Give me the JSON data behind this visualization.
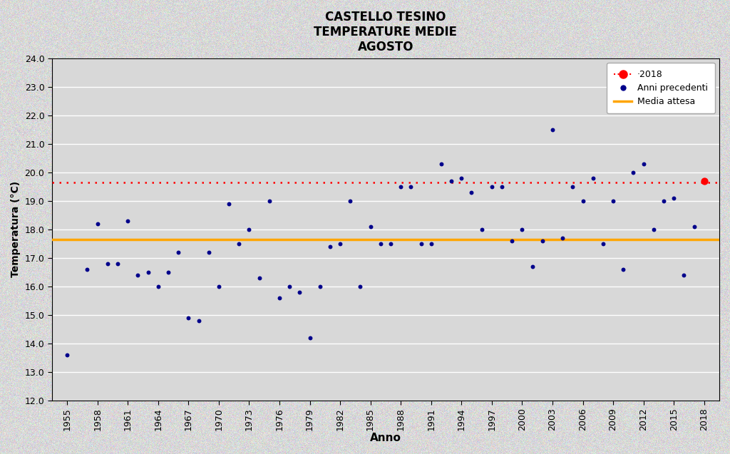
{
  "title_line1": "CASTELLO TESINO",
  "title_line2": "TEMPERATURE MEDIE",
  "title_line3": "AGOSTO",
  "xlabel": "Anno",
  "ylabel": "Temperatura (°C)",
  "ylim": [
    12.0,
    24.0
  ],
  "yticks": [
    12.0,
    13.0,
    14.0,
    15.0,
    16.0,
    17.0,
    18.0,
    19.0,
    20.0,
    21.0,
    22.0,
    23.0,
    24.0
  ],
  "xlim": [
    1953.5,
    2019.5
  ],
  "xticks": [
    1955,
    1958,
    1961,
    1964,
    1967,
    1970,
    1973,
    1976,
    1979,
    1982,
    1985,
    1988,
    1991,
    1994,
    1997,
    2000,
    2003,
    2006,
    2009,
    2012,
    2015,
    2018
  ],
  "media_attesa": 17.65,
  "year_2018": 2018,
  "value_2018": 19.7,
  "dashed_line_value": 19.65,
  "background_color": "#d8d8d8",
  "dot_color": "#00008B",
  "dot_2018_color": "#FF0000",
  "media_line_color": "#FFA500",
  "dashed_line_color": "#FF0000",
  "previous_years": [
    [
      1955,
      13.6
    ],
    [
      1957,
      16.6
    ],
    [
      1958,
      18.2
    ],
    [
      1959,
      16.8
    ],
    [
      1960,
      16.8
    ],
    [
      1961,
      18.3
    ],
    [
      1962,
      16.4
    ],
    [
      1963,
      16.5
    ],
    [
      1964,
      16.0
    ],
    [
      1965,
      16.5
    ],
    [
      1966,
      17.2
    ],
    [
      1967,
      14.9
    ],
    [
      1968,
      14.8
    ],
    [
      1969,
      17.2
    ],
    [
      1970,
      16.0
    ],
    [
      1971,
      18.9
    ],
    [
      1972,
      17.5
    ],
    [
      1973,
      18.0
    ],
    [
      1974,
      16.3
    ],
    [
      1975,
      19.0
    ],
    [
      1976,
      15.6
    ],
    [
      1977,
      16.0
    ],
    [
      1978,
      15.8
    ],
    [
      1979,
      14.2
    ],
    [
      1980,
      16.0
    ],
    [
      1981,
      17.4
    ],
    [
      1982,
      17.5
    ],
    [
      1983,
      19.0
    ],
    [
      1984,
      16.0
    ],
    [
      1985,
      18.1
    ],
    [
      1986,
      17.5
    ],
    [
      1987,
      17.5
    ],
    [
      1988,
      19.5
    ],
    [
      1989,
      19.5
    ],
    [
      1990,
      17.5
    ],
    [
      1991,
      17.5
    ],
    [
      1992,
      20.3
    ],
    [
      1993,
      19.7
    ],
    [
      1994,
      19.8
    ],
    [
      1995,
      19.3
    ],
    [
      1996,
      18.0
    ],
    [
      1997,
      19.5
    ],
    [
      1998,
      19.5
    ],
    [
      1999,
      17.6
    ],
    [
      2000,
      18.0
    ],
    [
      2001,
      16.7
    ],
    [
      2002,
      17.6
    ],
    [
      2003,
      21.5
    ],
    [
      2004,
      17.7
    ],
    [
      2005,
      19.5
    ],
    [
      2006,
      19.0
    ],
    [
      2007,
      19.8
    ],
    [
      2008,
      17.5
    ],
    [
      2009,
      19.0
    ],
    [
      2010,
      16.6
    ],
    [
      2011,
      20.0
    ],
    [
      2012,
      20.3
    ],
    [
      2013,
      18.0
    ],
    [
      2014,
      19.0
    ],
    [
      2015,
      19.1
    ],
    [
      2016,
      16.4
    ],
    [
      2017,
      18.1
    ]
  ]
}
